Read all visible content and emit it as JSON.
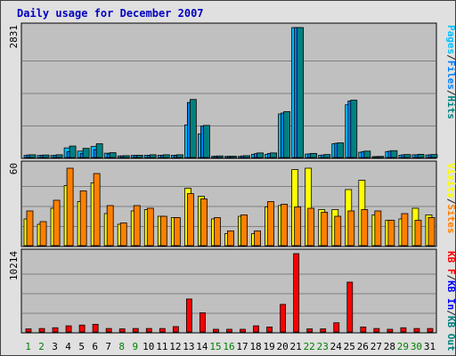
{
  "chart_data": [
    {
      "type": "bar",
      "title": "Daily usage for December 2007",
      "x_labels": [
        "1",
        "2",
        "3",
        "4",
        "5",
        "6",
        "7",
        "8",
        "9",
        "10",
        "11",
        "12",
        "13",
        "14",
        "15",
        "16",
        "17",
        "18",
        "19",
        "20",
        "21",
        "22",
        "23",
        "24",
        "25",
        "26",
        "27",
        "28",
        "29",
        "30",
        "31"
      ],
      "weekend_days": [
        1,
        2,
        8,
        9,
        15,
        16,
        22,
        23,
        29,
        30
      ],
      "ymax": 2831,
      "ymax_label": "2831",
      "grid": true,
      "series": [
        {
          "name": "Pages",
          "color": "#00c0ff",
          "values": [
            45,
            45,
            45,
            210,
            140,
            240,
            95,
            35,
            45,
            50,
            50,
            50,
            710,
            515,
            25,
            25,
            25,
            70,
            70,
            950,
            2831,
            75,
            50,
            300,
            1150,
            115,
            10,
            130,
            50,
            60,
            55
          ]
        },
        {
          "name": "Files",
          "color": "#0080ff",
          "values": [
            55,
            50,
            50,
            125,
            90,
            170,
            75,
            35,
            45,
            45,
            45,
            45,
            1200,
            685,
            30,
            25,
            35,
            85,
            90,
            970,
            2831,
            80,
            55,
            310,
            1230,
            130,
            20,
            140,
            60,
            60,
            60
          ]
        },
        {
          "name": "Hits",
          "color": "#008080",
          "values": [
            60,
            55,
            60,
            250,
            200,
            300,
            105,
            40,
            50,
            60,
            60,
            60,
            1265,
            700,
            35,
            30,
            40,
            100,
            100,
            1000,
            2831,
            90,
            65,
            320,
            1250,
            140,
            25,
            150,
            65,
            70,
            65
          ]
        }
      ],
      "legend": [
        {
          "text": "Pages",
          "color": "#00c0ff"
        },
        {
          "text": "/",
          "color": "#202020"
        },
        {
          "text": "Files",
          "color": "#0080ff"
        },
        {
          "text": "/",
          "color": "#202020"
        },
        {
          "text": "Hits",
          "color": "#008080"
        }
      ]
    },
    {
      "type": "bar",
      "ymax": 60,
      "ymax_label": "60",
      "grid": true,
      "series": [
        {
          "name": "Visits",
          "color": "#ffff00",
          "values": [
            20,
            16,
            28,
            45,
            33,
            47,
            24,
            16,
            26,
            27,
            22,
            21,
            43,
            37,
            20,
            9,
            22,
            9,
            29,
            30,
            57,
            58,
            27,
            27,
            42,
            49,
            23,
            19,
            20,
            28,
            23
          ]
        },
        {
          "name": "Sites",
          "color": "#ff8000",
          "values": [
            26,
            18,
            34,
            58,
            41,
            54,
            30,
            17,
            30,
            28,
            22,
            21,
            39,
            35,
            21,
            11,
            23,
            11,
            33,
            31,
            29,
            28,
            25,
            22,
            26,
            27,
            26,
            19,
            24,
            19,
            21
          ]
        }
      ],
      "legend": [
        {
          "text": "Visits",
          "color": "#ffff00"
        },
        {
          "text": "/",
          "color": "#202020"
        },
        {
          "text": "Sites",
          "color": "#ff8000"
        }
      ]
    },
    {
      "type": "bar",
      "ymax": 10214,
      "ymax_label": "10214",
      "grid": true,
      "series": [
        {
          "name": "KBytes",
          "color": "#ff0000",
          "values": [
            400,
            450,
            550,
            800,
            900,
            1000,
            450,
            400,
            450,
            450,
            450,
            700,
            4300,
            2500,
            350,
            350,
            350,
            800,
            650,
            3600,
            10214,
            400,
            400,
            1200,
            6500,
            650,
            450,
            350,
            550,
            450,
            450
          ]
        }
      ],
      "legend": [
        {
          "text": "KB F",
          "color": "#ff0000"
        },
        {
          "text": "/",
          "color": "#202020"
        },
        {
          "text": "KB In",
          "color": "#0000ff"
        },
        {
          "text": "/",
          "color": "#202020"
        },
        {
          "text": "KB Out",
          "color": "#008080"
        }
      ]
    }
  ]
}
